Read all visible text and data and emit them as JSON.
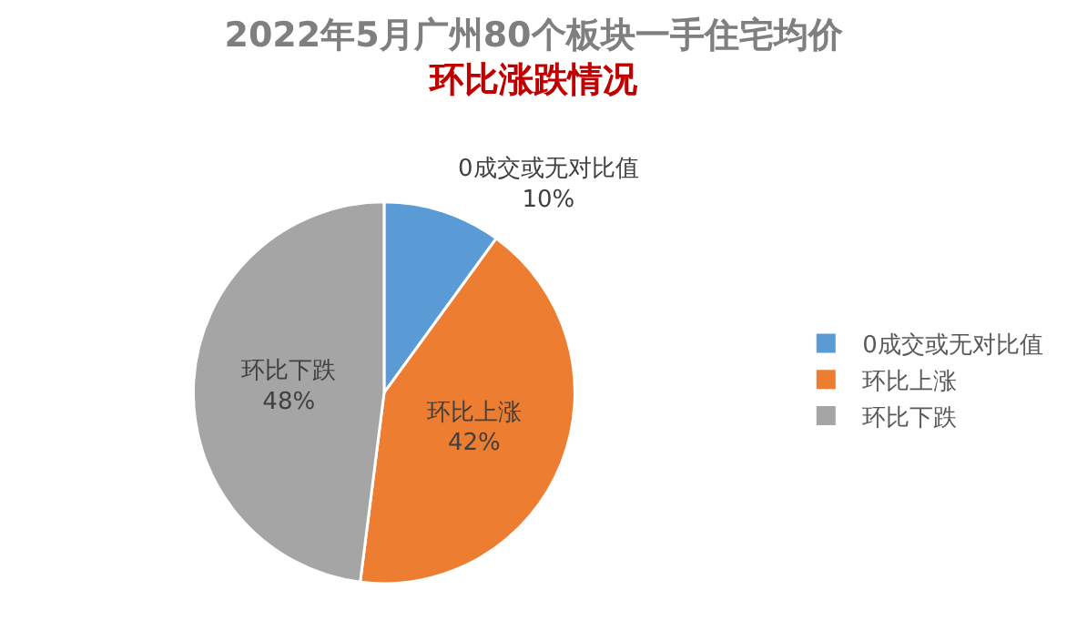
{
  "chart_data": {
    "type": "pie",
    "title": "2022年5月广州80个板块一手住宅均价",
    "subtitle": "环比涨跌情况",
    "categories": [
      "0成交或无对比值",
      "环比上涨",
      "环比下跌"
    ],
    "values": [
      10,
      42,
      48
    ],
    "colors": [
      "#5b9bd5",
      "#ed7d31",
      "#a5a5a5"
    ],
    "value_labels": [
      "10%",
      "42%",
      "48%"
    ],
    "legend": "right"
  }
}
